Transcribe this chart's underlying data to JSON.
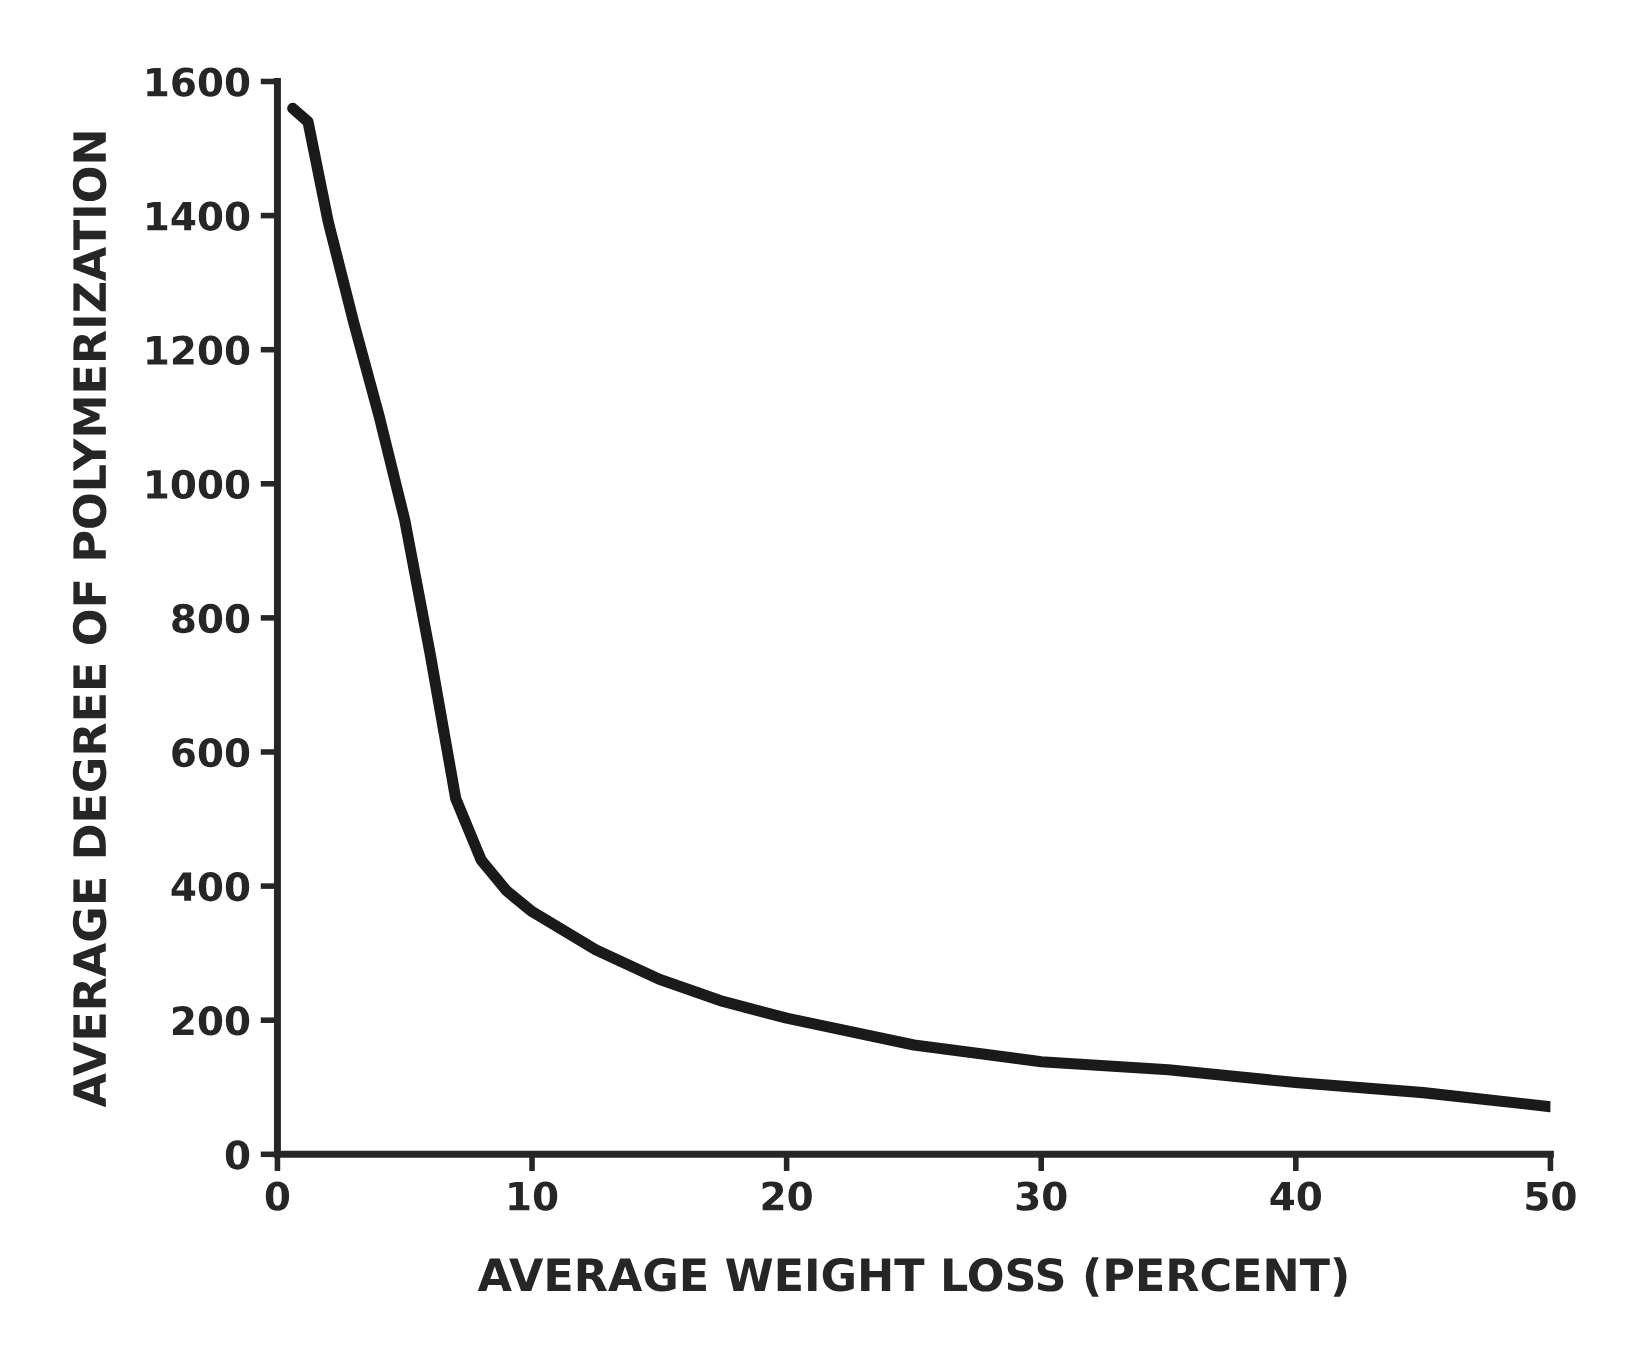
{
  "chart_data": {
    "type": "line",
    "xlabel": "AVERAGE WEIGHT LOSS (PERCENT)",
    "ylabel": "AVERAGE DEGREE OF POLYMERIZATION",
    "series": [
      {
        "color": "#1a1a1a",
        "x": [
          0.6,
          1.2,
          2,
          3,
          4,
          5,
          6,
          7,
          8,
          9,
          10,
          12.5,
          15,
          17.5,
          20,
          25,
          30,
          35,
          40,
          45,
          50
        ],
        "values": [
          1560,
          1540,
          1390,
          1240,
          1100,
          946,
          746,
          531,
          439,
          393,
          362,
          305,
          261,
          228,
          203,
          163,
          138,
          126,
          107,
          92,
          71
        ]
      }
    ],
    "xlim": [
      0,
      50
    ],
    "ylim": [
      0,
      1600
    ],
    "xticks": [
      0,
      10,
      20,
      30,
      40,
      50
    ],
    "yticks": [
      0,
      200,
      400,
      600,
      800,
      1000,
      1200,
      1400,
      1600
    ],
    "grid": false,
    "marker": "none",
    "line_style": "solid"
  }
}
